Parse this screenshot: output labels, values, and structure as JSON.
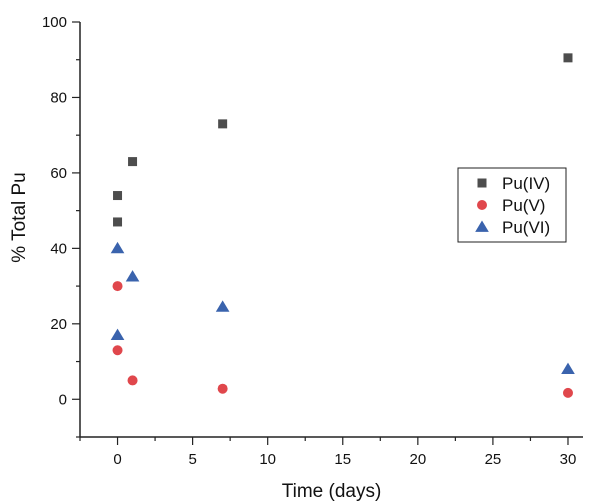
{
  "chart_data": {
    "type": "scatter",
    "xlabel": "Time (days)",
    "ylabel": "% Total Pu",
    "xlim": [
      -2.5,
      31
    ],
    "ylim": [
      -10,
      100
    ],
    "x_ticks": [
      0,
      5,
      10,
      15,
      20,
      25,
      30
    ],
    "y_ticks": [
      0,
      20,
      40,
      60,
      80,
      100
    ],
    "legend_position": "right",
    "series": [
      {
        "name": "Pu(IV)",
        "marker": "square",
        "color": "#4d4d4d",
        "points": [
          [
            0,
            54
          ],
          [
            0,
            47
          ],
          [
            1,
            63
          ],
          [
            7,
            73
          ],
          [
            30,
            90.5
          ]
        ]
      },
      {
        "name": "Pu(V)",
        "marker": "circle",
        "color": "#e0474c",
        "points": [
          [
            0,
            30
          ],
          [
            0,
            13
          ],
          [
            1,
            5
          ],
          [
            7,
            2.8
          ],
          [
            30,
            1.7
          ]
        ]
      },
      {
        "name": "Pu(VI)",
        "marker": "triangle",
        "color": "#3a63ad",
        "points": [
          [
            0,
            40
          ],
          [
            0,
            17
          ],
          [
            1,
            32.5
          ],
          [
            7,
            24.5
          ],
          [
            30,
            8
          ]
        ]
      }
    ]
  }
}
